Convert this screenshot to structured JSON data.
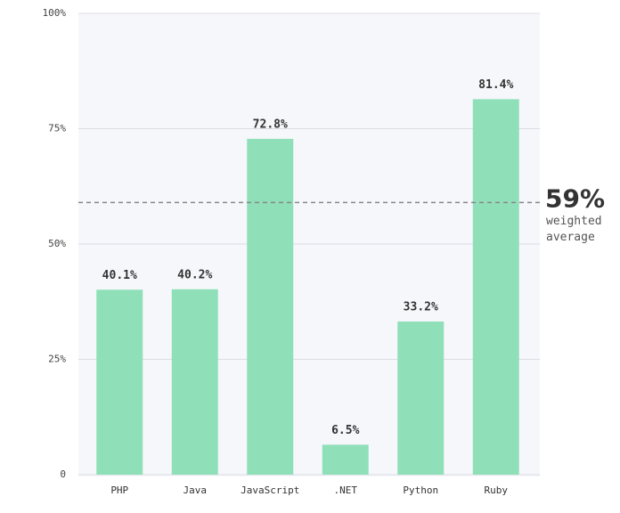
{
  "chart_data": {
    "type": "bar",
    "categories": [
      "PHP",
      "Java",
      "JavaScript",
      ".NET",
      "Python",
      "Ruby"
    ],
    "values": [
      40.1,
      40.2,
      72.8,
      6.5,
      33.2,
      81.4
    ],
    "value_labels": [
      "40.1%",
      "40.2%",
      "72.8%",
      "6.5%",
      "33.2%",
      "81.4%"
    ],
    "color": "#8fe0b9",
    "ylim": [
      0,
      100
    ],
    "yticks": [
      0,
      {
        "value": 25,
        "label": "25%"
      },
      {
        "value": 50,
        "label": "50%"
      },
      {
        "value": 75,
        "label": "75%"
      },
      {
        "value": 100,
        "label": "100%"
      }
    ],
    "grid": true,
    "average": {
      "value": 59,
      "label": "59%",
      "text": [
        "weighted",
        "average"
      ]
    }
  }
}
